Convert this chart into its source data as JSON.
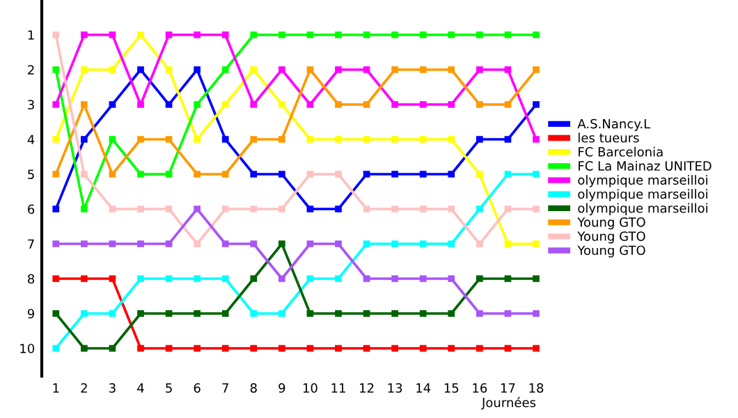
{
  "chart_data": {
    "type": "line",
    "xlabel": "Journées",
    "x": [
      1,
      2,
      3,
      4,
      5,
      6,
      7,
      8,
      9,
      10,
      11,
      12,
      13,
      14,
      15,
      16,
      17,
      18
    ],
    "xlim": [
      0.5,
      18
    ],
    "xticks": [
      1,
      2,
      3,
      4,
      5,
      6,
      7,
      8,
      9,
      10,
      11,
      12,
      13,
      14,
      15,
      16,
      17,
      18
    ],
    "ylim": [
      10.8,
      0
    ],
    "yticks": [
      1,
      2,
      3,
      4,
      5,
      6,
      7,
      8,
      9,
      10
    ],
    "grid": false,
    "legend": "right",
    "marker": "square",
    "line_style": "solid",
    "series": [
      {
        "name": "A.S.Nancy.L",
        "color": "#0000ff",
        "values": [
          6,
          4,
          3,
          2,
          3,
          2,
          4,
          5,
          5,
          6,
          6,
          5,
          5,
          5,
          5,
          4,
          4,
          3
        ]
      },
      {
        "name": "les tueurs",
        "color": "#ff0000",
        "values": [
          8,
          8,
          8,
          10,
          10,
          10,
          10,
          10,
          10,
          10,
          10,
          10,
          10,
          10,
          10,
          10,
          10,
          10
        ]
      },
      {
        "name": "FC Barcelonia",
        "color": "#ffff00",
        "values": [
          4,
          2,
          2,
          1,
          2,
          4,
          3,
          2,
          3,
          4,
          4,
          4,
          4,
          4,
          4,
          5,
          7,
          7
        ]
      },
      {
        "name": "FC La Mainaz UNITED",
        "color": "#00ff00",
        "values": [
          2,
          6,
          4,
          5,
          5,
          3,
          2,
          1,
          1,
          1,
          1,
          1,
          1,
          1,
          1,
          1,
          1,
          1
        ]
      },
      {
        "name": "olympique marseilloi",
        "color": "#ff00ff",
        "values": [
          3,
          1,
          1,
          3,
          1,
          1,
          1,
          3,
          2,
          3,
          2,
          2,
          3,
          3,
          3,
          2,
          2,
          4
        ]
      },
      {
        "name": "olympique marseilloi",
        "color": "#00ffff",
        "values": [
          10,
          9,
          9,
          8,
          8,
          8,
          8,
          9,
          9,
          8,
          8,
          7,
          7,
          7,
          7,
          6,
          5,
          5
        ]
      },
      {
        "name": "olympique marseilloi",
        "color": "#006400",
        "values": [
          9,
          10,
          10,
          9,
          9,
          9,
          9,
          8,
          7,
          9,
          9,
          9,
          9,
          9,
          9,
          8,
          8,
          8
        ]
      },
      {
        "name": "Young GTO",
        "color": "#ff9900",
        "values": [
          5,
          3,
          5,
          4,
          4,
          5,
          5,
          4,
          4,
          2,
          3,
          3,
          2,
          2,
          2,
          3,
          3,
          2
        ]
      },
      {
        "name": "Young GTO",
        "color": "#ffc0c0",
        "values": [
          1,
          5,
          6,
          6,
          6,
          7,
          6,
          6,
          6,
          5,
          5,
          6,
          6,
          6,
          6,
          7,
          6,
          6
        ]
      },
      {
        "name": "Young GTO",
        "color": "#a855f7",
        "values": [
          7,
          7,
          7,
          7,
          7,
          6,
          7,
          7,
          8,
          7,
          7,
          8,
          8,
          8,
          8,
          9,
          9,
          9
        ]
      }
    ]
  }
}
